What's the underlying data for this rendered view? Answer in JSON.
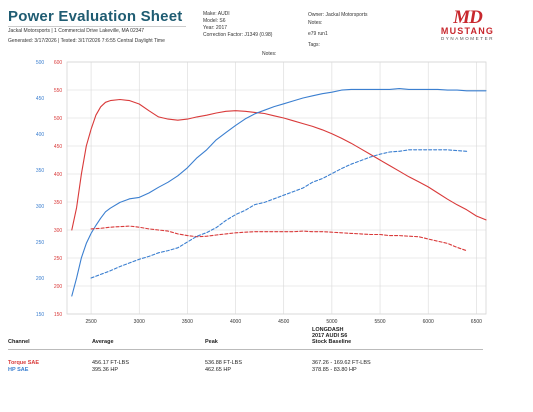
{
  "header": {
    "title": "Power Evaluation Sheet",
    "shop_line": "Jackal Motorsports | 1 Commercial Drive Lakeville, MA 02347",
    "generated_line": "Generated: 3/17/2026 | Tested: 3/17/2026 7:6:55 Central Daylight Time",
    "make": "Make: AUDI",
    "model": "Model: S6",
    "year": "Year: 2017",
    "correction": "Correction Factor: J1349 (0.98)",
    "owner": "Owner: Jackal Motorsports",
    "notes": "Notes:",
    "run": "e79 run1",
    "tags": "Tags:",
    "notes_center": "Notes:"
  },
  "logo": {
    "mark": "MD",
    "brand": "MUSTANG",
    "sub": "DYNAMOMETER"
  },
  "chart_data": {
    "type": "line",
    "xlabel": "",
    "ylabel": "",
    "xlim": [
      2250,
      6600
    ],
    "xticks": [
      "2500",
      "3000",
      "3500",
      "4000",
      "4500",
      "5000",
      "5500",
      "6000",
      "6500"
    ],
    "ylim_left": [
      150,
      500
    ],
    "yticks_left": [
      "150",
      "200",
      "250",
      "300",
      "350",
      "400",
      "450",
      "500"
    ],
    "ylim_right": [
      150,
      600
    ],
    "yticks_right": [
      "150",
      "200",
      "250",
      "300",
      "350",
      "400",
      "450",
      "500",
      "550",
      "600"
    ],
    "grid": true,
    "series": [
      {
        "name": "Torque SAE",
        "axis": "right",
        "color": "#d93a3a",
        "style": "solid",
        "x": [
          2300,
          2350,
          2400,
          2450,
          2500,
          2550,
          2600,
          2650,
          2700,
          2800,
          2900,
          3000,
          3100,
          3200,
          3300,
          3400,
          3500,
          3600,
          3700,
          3800,
          3900,
          4000,
          4100,
          4200,
          4300,
          4400,
          4500,
          4600,
          4700,
          4800,
          4900,
          5000,
          5100,
          5200,
          5300,
          5400,
          5500,
          5600,
          5700,
          5800,
          5900,
          6000,
          6100,
          6200,
          6300,
          6400,
          6500,
          6600
        ],
        "y": [
          300,
          340,
          400,
          450,
          480,
          505,
          520,
          528,
          531,
          533,
          531,
          525,
          513,
          502,
          498,
          496,
          498,
          502,
          505,
          509,
          512,
          513,
          512,
          510,
          508,
          504,
          500,
          495,
          490,
          485,
          479,
          472,
          464,
          455,
          445,
          435,
          425,
          415,
          405,
          395,
          386,
          377,
          366,
          355,
          345,
          336,
          325,
          318
        ]
      },
      {
        "name": "HP SAE",
        "axis": "left",
        "color": "#3b7fd0",
        "style": "solid",
        "x": [
          2300,
          2350,
          2400,
          2450,
          2500,
          2550,
          2600,
          2650,
          2700,
          2800,
          2900,
          3000,
          3100,
          3200,
          3300,
          3400,
          3500,
          3600,
          3700,
          3800,
          3900,
          4000,
          4100,
          4200,
          4300,
          4400,
          4500,
          4600,
          4700,
          4800,
          4900,
          5000,
          5100,
          5200,
          5300,
          5400,
          5500,
          5600,
          5700,
          5800,
          5900,
          6000,
          6100,
          6200,
          6300,
          6400,
          6500,
          6600
        ],
        "y": [
          175,
          200,
          228,
          248,
          262,
          273,
          283,
          292,
          297,
          305,
          310,
          312,
          318,
          326,
          333,
          342,
          353,
          367,
          378,
          392,
          402,
          412,
          421,
          428,
          433,
          438,
          442,
          446,
          450,
          453,
          456,
          458,
          461,
          462,
          462,
          462,
          462,
          462,
          463,
          462,
          462,
          462,
          462,
          461,
          461,
          460,
          460,
          460
        ]
      },
      {
        "name": "Torque SAE baseline",
        "axis": "right",
        "color": "#d93a3a",
        "style": "dashed",
        "x": [
          2500,
          2600,
          2700,
          2800,
          2900,
          3000,
          3100,
          3200,
          3300,
          3400,
          3500,
          3600,
          3700,
          3800,
          3900,
          4000,
          4100,
          4200,
          4300,
          4400,
          4500,
          4600,
          4700,
          4800,
          4900,
          5000,
          5100,
          5200,
          5300,
          5400,
          5500,
          5600,
          5700,
          5800,
          5900,
          6000,
          6100,
          6200,
          6300,
          6400
        ],
        "y": [
          302,
          303,
          305,
          306,
          307,
          305,
          302,
          300,
          298,
          293,
          290,
          288,
          289,
          291,
          293,
          295,
          296,
          297,
          297,
          297,
          297,
          297,
          298,
          297,
          297,
          296,
          295,
          294,
          293,
          292,
          292,
          290,
          290,
          289,
          288,
          284,
          280,
          276,
          269,
          263
        ]
      },
      {
        "name": "HP SAE baseline",
        "axis": "left",
        "color": "#3b7fd0",
        "style": "dashed",
        "x": [
          2500,
          2600,
          2700,
          2800,
          2900,
          3000,
          3100,
          3200,
          3300,
          3400,
          3500,
          3600,
          3700,
          3800,
          3900,
          4000,
          4100,
          4200,
          4300,
          4400,
          4500,
          4600,
          4700,
          4800,
          4900,
          5000,
          5100,
          5200,
          5300,
          5400,
          5500,
          5600,
          5700,
          5800,
          5900,
          6000,
          6100,
          6200,
          6300,
          6400
        ],
        "y": [
          200,
          205,
          210,
          216,
          221,
          226,
          230,
          235,
          238,
          242,
          250,
          258,
          263,
          270,
          280,
          288,
          294,
          302,
          305,
          310,
          315,
          320,
          325,
          333,
          338,
          345,
          352,
          358,
          363,
          368,
          372,
          375,
          376,
          378,
          378,
          378,
          378,
          378,
          377,
          376
        ]
      }
    ]
  },
  "table": {
    "headers": {
      "channel": "Channel",
      "average": "Average",
      "peak": "Peak",
      "baseline_title": "LONGDASH",
      "baseline_vehicle": "2017 AUDI S6",
      "baseline_name": "Stock Baseline"
    },
    "rows": [
      {
        "channel": "Torque SAE",
        "average": "456.17 FT-LBS",
        "peak": "536.88 FT-LBS",
        "baseline": "367.26 - 169.62 FT-LBS"
      },
      {
        "channel": "HP SAE",
        "average": "395.36 HP",
        "peak": "462.65 HP",
        "baseline": "378.85 - 83.80 HP"
      }
    ]
  }
}
